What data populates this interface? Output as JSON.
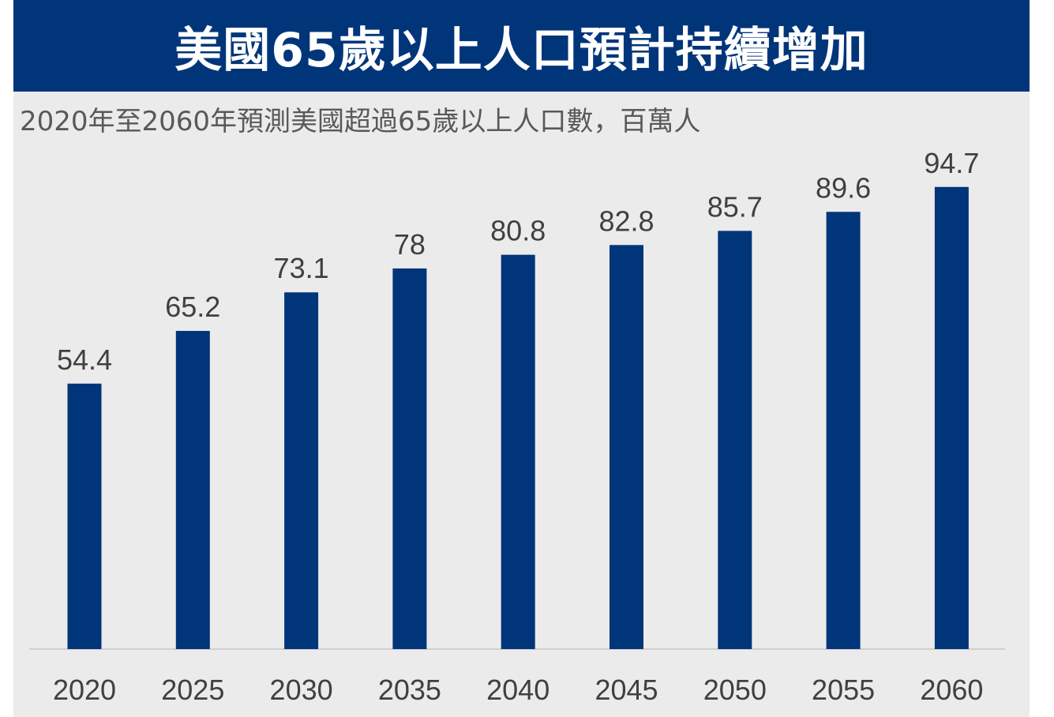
{
  "title": "美國65歲以上人口預計持續增加",
  "subtitle": "2020年至2060年預測美國超過65歲以上人口數，百萬人",
  "colors": {
    "banner": "#00357a",
    "bar": "#00357a",
    "panel": "#ebebeb",
    "text": "#404040",
    "axis": "#c8c8c8"
  },
  "chart_data": {
    "type": "bar",
    "title": "美國65歲以上人口預計持續增加",
    "subtitle": "2020年至2060年預測美國超過65歲以上人口數，百萬人",
    "xlabel": "",
    "ylabel": "",
    "categories": [
      "2020",
      "2025",
      "2030",
      "2035",
      "2040",
      "2045",
      "2050",
      "2055",
      "2060"
    ],
    "values": [
      54.4,
      65.2,
      73.1,
      78,
      80.8,
      82.8,
      85.7,
      89.6,
      94.7
    ],
    "data_labels": [
      "54.4",
      "65.2",
      "73.1",
      "78",
      "80.8",
      "82.8",
      "85.7",
      "89.6",
      "94.7"
    ],
    "ylim": [
      0,
      100
    ],
    "grid": false,
    "legend": "none"
  }
}
